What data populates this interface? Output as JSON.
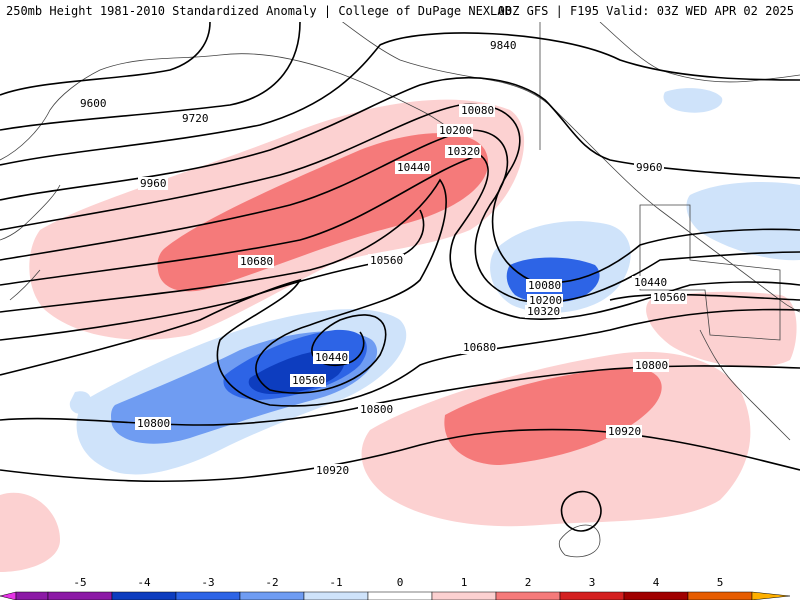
{
  "header": {
    "left": "250mb Height 1981-2010 Standardized Anomaly | College of DuPage NEXLAB",
    "right": "00Z GFS | F195 Valid: 03Z WED APR 02 2025"
  },
  "contour_labels": [
    "9600",
    "9720",
    "9840",
    "9960",
    "10080",
    "10200",
    "10320",
    "10440",
    "10560",
    "10680",
    "10800",
    "10920"
  ],
  "colorbar": {
    "ticks": [
      "-5",
      "-4",
      "-3",
      "-2",
      "-1",
      "0",
      "1",
      "2",
      "3",
      "4",
      "5"
    ],
    "colors": [
      "#e633e6",
      "#8c1aa6",
      "#0d3dbf",
      "#2d64e6",
      "#6f9cf2",
      "#cfe3fa",
      "#ffffff",
      "#fcd1d1",
      "#f57a7a",
      "#d42020",
      "#a00000",
      "#e65c00",
      "#ffb000"
    ]
  },
  "anomaly_colors": {
    "pos1": "#fcd1d1",
    "pos2": "#f57a7a",
    "neg1": "#cfe3fa",
    "neg2": "#6f9cf2",
    "neg3": "#2d64e6",
    "neg4": "#0d3dbf"
  }
}
